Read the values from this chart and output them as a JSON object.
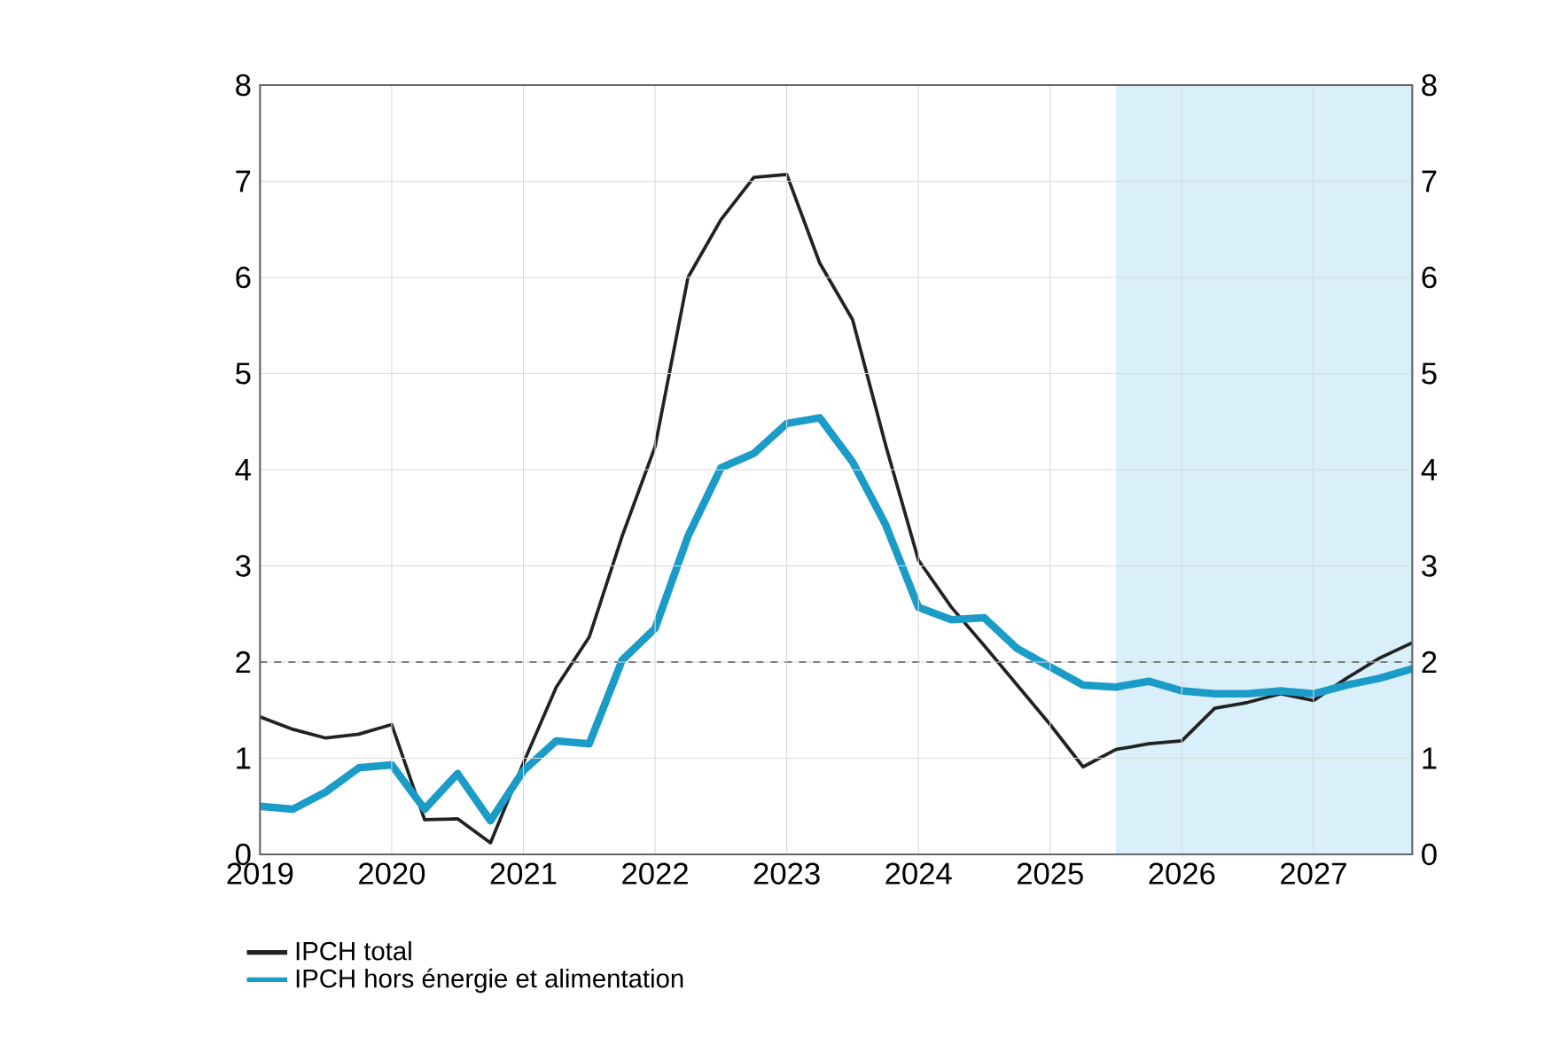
{
  "chart_data": {
    "type": "line",
    "xlim": [
      2019,
      2027.75
    ],
    "xticks": [
      2019,
      2020,
      2021,
      2022,
      2023,
      2024,
      2025,
      2026,
      2027
    ],
    "ylim": [
      0,
      8
    ],
    "yticks": [
      0,
      1,
      2,
      3,
      4,
      5,
      6,
      7,
      8
    ],
    "y2lim": [
      0,
      8
    ],
    "y2ticks": [
      0,
      1,
      2,
      3,
      4,
      5,
      6,
      7,
      8
    ],
    "grid": true,
    "legend": "bottom",
    "line_style": "solid",
    "marker": "none",
    "x": [
      2019,
      2019.25,
      2019.5,
      2019.75,
      2020,
      2020.25,
      2020.5,
      2020.75,
      2021,
      2021.25,
      2021.5,
      2021.75,
      2022,
      2022.25,
      2022.5,
      2022.75,
      2023,
      2023.25,
      2023.5,
      2023.75,
      2024,
      2024.25,
      2024.5,
      2024.75,
      2025,
      2025.25,
      2025.5,
      2025.75,
      2026,
      2026.25,
      2026.5,
      2026.75,
      2027,
      2027.25,
      2027.5,
      2027.75
    ],
    "series": [
      {
        "name": "IPCH total",
        "color": "#222222",
        "values": [
          1.43,
          1.3,
          1.21,
          1.25,
          1.35,
          0.36,
          0.37,
          0.12,
          0.95,
          1.74,
          2.26,
          3.31,
          4.24,
          6.0,
          6.6,
          7.04,
          7.07,
          6.15,
          5.56,
          4.26,
          3.06,
          2.57,
          2.17,
          1.76,
          1.35,
          0.91,
          1.09,
          1.15,
          1.18,
          1.52,
          1.58,
          1.67,
          1.6,
          1.83,
          2.04,
          2.2
        ]
      },
      {
        "name": "IPCH hors énergie et alimentation",
        "color": "#1a9bc8",
        "values": [
          0.5,
          0.47,
          0.65,
          0.9,
          0.93,
          0.47,
          0.84,
          0.35,
          0.87,
          1.18,
          1.15,
          2.02,
          2.35,
          3.31,
          4.02,
          4.17,
          4.48,
          4.54,
          4.08,
          3.43,
          2.57,
          2.44,
          2.46,
          2.14,
          1.95,
          1.76,
          1.74,
          1.8,
          1.7,
          1.67,
          1.67,
          1.7,
          1.67,
          1.76,
          1.83,
          1.93
        ]
      }
    ],
    "ref_lines": [
      {
        "axis": "y",
        "value": 2,
        "line_style": "dashed",
        "color": "#222222"
      }
    ],
    "bands": [
      {
        "axis": "x",
        "from": 2025.5,
        "to": 2027.75,
        "color": "#d9eff9"
      }
    ]
  }
}
